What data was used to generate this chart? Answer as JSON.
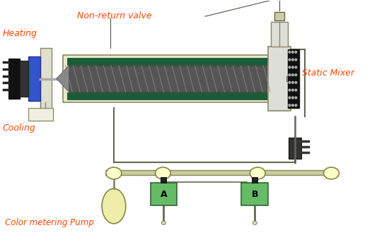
{
  "bg_color": "#ffffff",
  "label_color": "#ff4500",
  "labels": {
    "non_return_valve": "Non-return valve",
    "heating": "Heating",
    "cooling": "Cooling",
    "static_mixer": "Static Mixer",
    "color_pump": "Color metering Pump",
    "A": "A",
    "B": "B"
  },
  "colors": {
    "barrel_outer": "#e8e8c8",
    "green_strip": "#1a5c3a",
    "screw_body": "#555555",
    "screw_line": "#888888",
    "nozzle_block": "#deded8",
    "static_mixer_body": "#222222",
    "static_mixer_dot": "#aaaaaa",
    "pipe_line": "#666655",
    "motor_black": "#111111",
    "blue_block": "#3355cc",
    "gray_cyl": "#cccccc",
    "circle_fill": "#ffffcc",
    "pump_green": "#66bb66",
    "oval_fill": "#eeeeaa",
    "valve_box": "#ccccaa",
    "connector_dark": "#333333",
    "manifold_outer": "#888866",
    "manifold_inner": "#cccc99"
  },
  "figsize": [
    5.5,
    3.5
  ],
  "dpi": 100
}
